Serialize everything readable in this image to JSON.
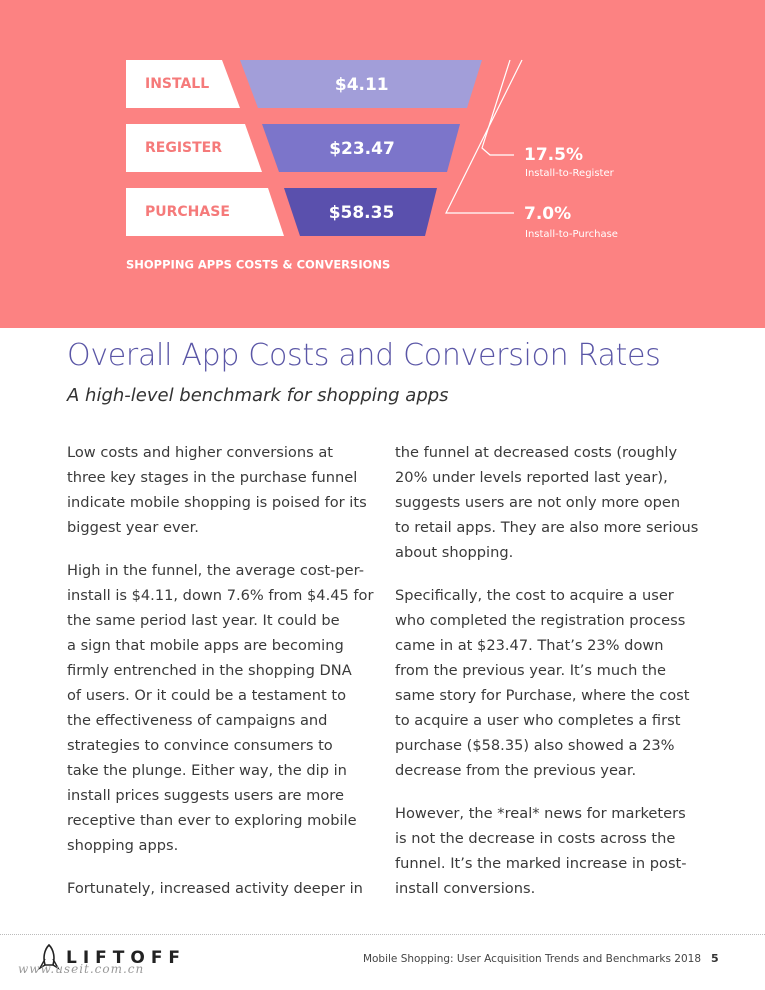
{
  "funnel": {
    "stages": [
      {
        "label": "INSTALL",
        "value": "$4.11"
      },
      {
        "label": "REGISTER",
        "value": "$23.47"
      },
      {
        "label": "PURCHASE",
        "value": "$58.35"
      }
    ],
    "conversions": [
      {
        "value": "17.5%",
        "label": "Install-to-Register"
      },
      {
        "value": "7.0%",
        "label": "Install-to-Purchase"
      }
    ],
    "caption": "SHOPPING APPS COSTS & CONVERSIONS"
  },
  "article": {
    "title": "Overall App Costs and Conversion Rates",
    "subtitle": "A high-level benchmark for shopping apps",
    "columns": [
      [
        [
          "Low costs and higher conversions at",
          "three key stages in the purchase funnel",
          "indicate mobile shopping is poised for its",
          "biggest year ever."
        ],
        [
          "High in the funnel, the average cost-per-",
          "install is $4.11, down 7.6% from $4.45 for",
          "the same period last year. It could be",
          "a sign that mobile apps are becoming",
          "firmly entrenched in the shopping DNA",
          "of users. Or it could be a testament to",
          "the effectiveness of campaigns and",
          "strategies to convince consumers to",
          "take the plunge. Either way, the dip in",
          "install prices suggests users are more",
          "receptive than ever to exploring mobile",
          "shopping apps."
        ],
        [
          "Fortunately, increased activity deeper in"
        ]
      ],
      [
        [
          "the funnel at decreased costs (roughly",
          "20% under levels reported last year),",
          "suggests users are not only more open",
          "to retail apps. They are also more serious",
          "about shopping."
        ],
        [
          "Specifically, the cost to acquire a user",
          "who completed the registration process",
          "came in at $23.47. That’s 23% down",
          "from the previous year. It’s much the",
          "same story for Purchase, where the cost",
          "to acquire a user who completes a first",
          "purchase ($58.35) also showed a 23%",
          "decrease from the previous year."
        ],
        [
          "However, the *real* news for marketers",
          "is not the decrease in costs across the",
          "funnel. It’s the marked increase in post-",
          "install conversions."
        ]
      ]
    ]
  },
  "footer": {
    "logo": "LIFTOFF",
    "text": "Mobile Shopping: User Acquisition Trends and Benchmarks 2018",
    "page": "5",
    "watermark": "www.useit.com.cn"
  }
}
